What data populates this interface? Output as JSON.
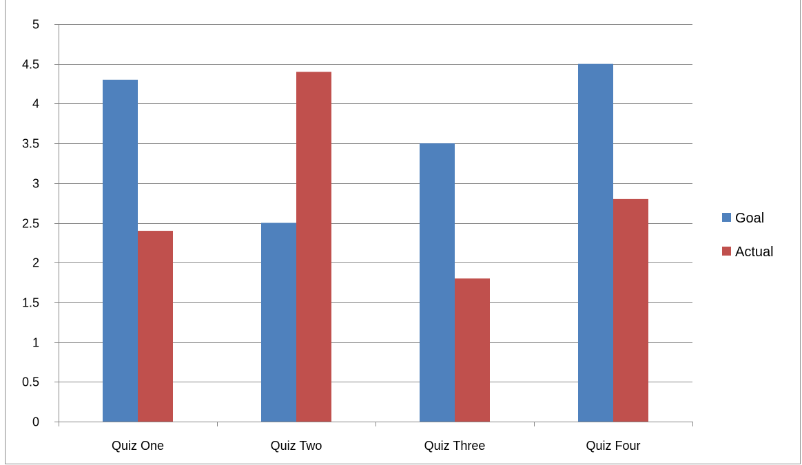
{
  "chart_data": {
    "type": "bar",
    "categories": [
      "Quiz One",
      "Quiz Two",
      "Quiz Three",
      "Quiz Four"
    ],
    "series": [
      {
        "name": "Goal",
        "color": "#4F81BD",
        "values": [
          4.3,
          2.5,
          3.5,
          4.5
        ]
      },
      {
        "name": "Actual",
        "color": "#C0504D",
        "values": [
          2.4,
          4.4,
          1.8,
          2.8
        ]
      }
    ],
    "title": "",
    "xlabel": "",
    "ylabel": "",
    "ylim": [
      0,
      5
    ],
    "yticks": [
      "0",
      "0.5",
      "1",
      "1.5",
      "2",
      "2.5",
      "3",
      "3.5",
      "4",
      "4.5",
      "5"
    ],
    "grid": true,
    "legend_position": "right"
  }
}
